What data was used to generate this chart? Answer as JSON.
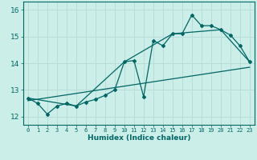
{
  "xlabel": "Humidex (Indice chaleur)",
  "background_color": "#cceee8",
  "grid_color": "#b8ddd8",
  "line_color": "#006666",
  "xlim": [
    -0.5,
    23.5
  ],
  "ylim": [
    11.7,
    16.3
  ],
  "xticks": [
    0,
    1,
    2,
    3,
    4,
    5,
    6,
    7,
    8,
    9,
    10,
    11,
    12,
    13,
    14,
    15,
    16,
    17,
    18,
    19,
    20,
    21,
    22,
    23
  ],
  "yticks": [
    12,
    13,
    14,
    15,
    16
  ],
  "series1_x": [
    0,
    1,
    2,
    3,
    4,
    5,
    6,
    7,
    8,
    9,
    10,
    11,
    12,
    13,
    14,
    15,
    16,
    17,
    18,
    19,
    20,
    21,
    22,
    23
  ],
  "series1_y": [
    12.7,
    12.5,
    12.1,
    12.4,
    12.5,
    12.4,
    12.55,
    12.65,
    12.8,
    13.0,
    14.05,
    14.1,
    12.75,
    14.85,
    14.65,
    15.1,
    15.1,
    15.8,
    15.4,
    15.4,
    15.25,
    15.05,
    14.65,
    14.05
  ],
  "series2_x": [
    0,
    5,
    10,
    15,
    20,
    23
  ],
  "series2_y": [
    12.7,
    12.4,
    14.05,
    15.1,
    15.25,
    14.05
  ],
  "series3_x": [
    0,
    23
  ],
  "series3_y": [
    12.6,
    13.85
  ]
}
